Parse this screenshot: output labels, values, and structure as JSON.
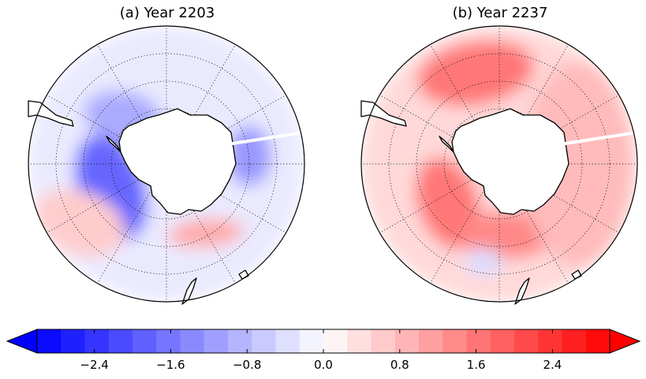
{
  "chart_data": [
    {
      "type": "heatmap",
      "projection": "south-polar-stereographic",
      "title": "(a) Year 2203",
      "shared_colorbar": true,
      "features": [
        {
          "kind": "negative-anomaly",
          "value": -1.8,
          "sector": "southern Indian Ocean / south of Africa"
        },
        {
          "kind": "negative-anomaly",
          "value": -1.0,
          "sector": "Weddell Sea"
        },
        {
          "kind": "negative-anomaly",
          "value": -1.2,
          "sector": "Ross Sea"
        },
        {
          "kind": "positive-anomaly",
          "value": 1.0,
          "sector": "south of Australia"
        },
        {
          "kind": "positive-anomaly",
          "value": 0.6,
          "sector": "outer ring east of Antarctic Peninsula"
        }
      ]
    },
    {
      "type": "heatmap",
      "projection": "south-polar-stereographic",
      "title": "(b) Year 2237",
      "shared_colorbar": true,
      "features": [
        {
          "kind": "positive-anomaly",
          "value": 1.6,
          "sector": "South Atlantic / Weddell Sea"
        },
        {
          "kind": "positive-anomaly",
          "value": 1.6,
          "sector": "southern Indian Ocean"
        },
        {
          "kind": "positive-anomaly",
          "value": 1.4,
          "sector": "south of Australia"
        },
        {
          "kind": "positive-anomaly",
          "value": 0.8,
          "sector": "Pacific sector, widespread"
        },
        {
          "kind": "negative-anomaly",
          "value": -0.4,
          "sector": "small patches near Ross Sea"
        }
      ]
    }
  ],
  "colorbar": {
    "min": -3.0,
    "max": 3.0,
    "levels": 24,
    "extend": "both",
    "cmap": "bwr",
    "ticks": [
      -2.4,
      -1.6,
      -0.8,
      0.0,
      0.8,
      1.6,
      2.4
    ],
    "tick_labels": [
      "−2.4",
      "−1.6",
      "−0.8",
      "0.0",
      "0.8",
      "1.6",
      "2.4"
    ],
    "colors": {
      "min": "#0000ff",
      "mid": "#ffffff",
      "max": "#ff0000"
    }
  },
  "titles": {
    "a": "(a) Year 2203",
    "b": "(b) Year 2237"
  }
}
